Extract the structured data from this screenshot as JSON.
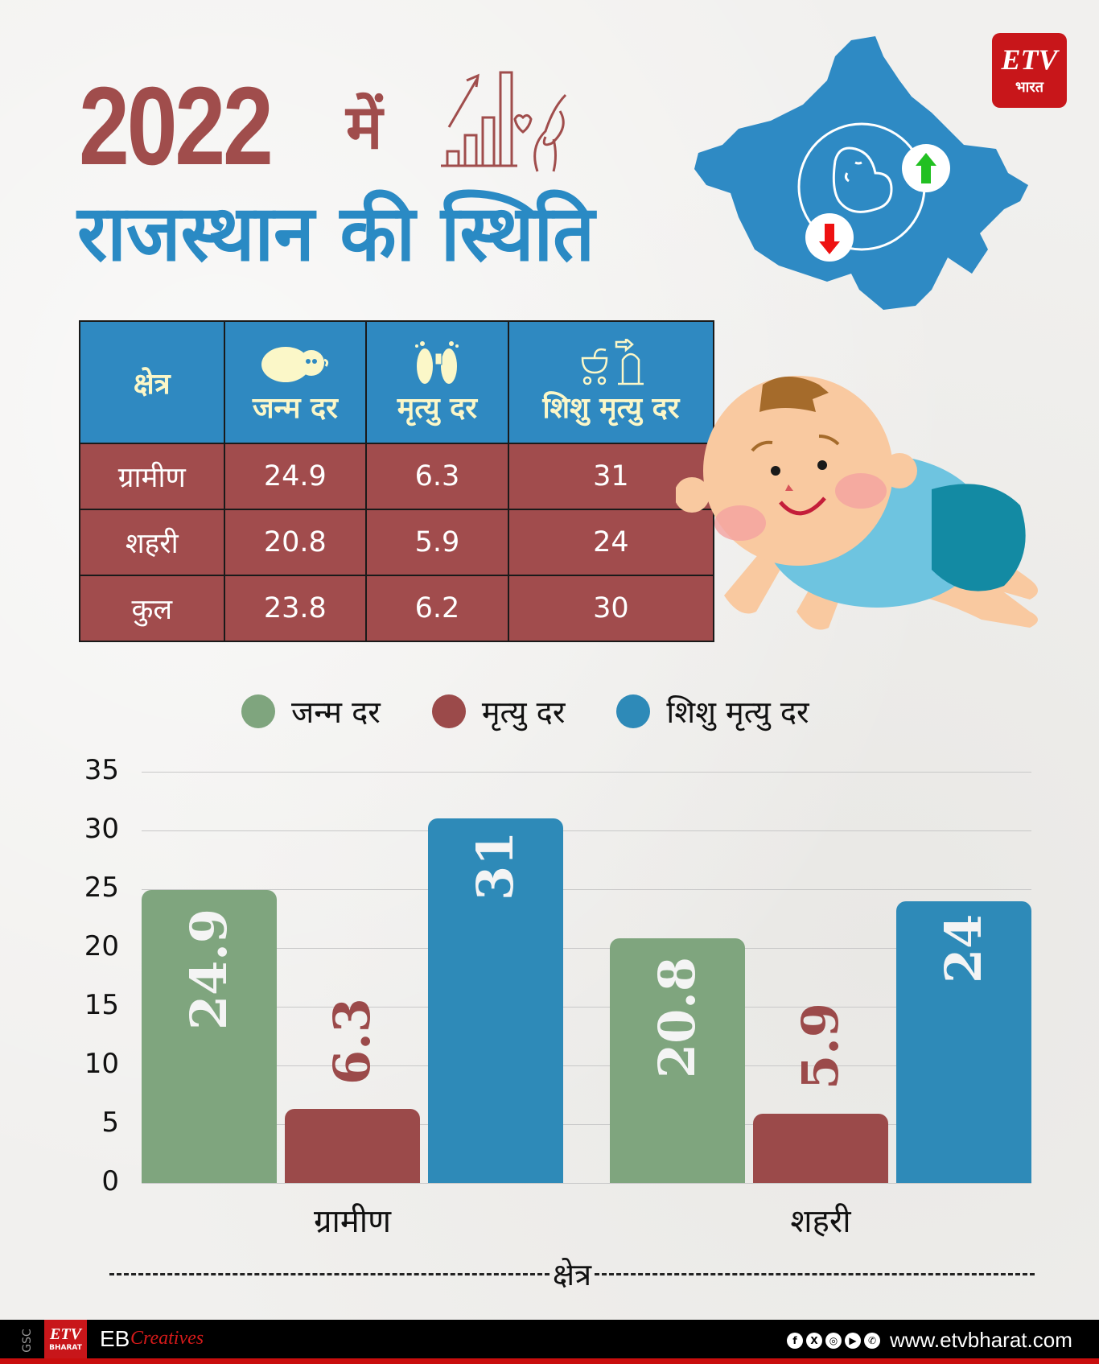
{
  "header": {
    "year": "2022",
    "year_suffix": "में",
    "subtitle": "राजस्थान की स्थिति"
  },
  "logo": {
    "brand": "ETV",
    "brand_sub": "भारत"
  },
  "table": {
    "headers": [
      "क्षेत्र",
      "जन्म दर",
      "मृत्यु दर",
      "शिशु मृत्यु दर"
    ],
    "rows": [
      [
        "ग्रामीण",
        "24.9",
        "6.3",
        "31"
      ],
      [
        "शहरी",
        "20.8",
        "5.9",
        "24"
      ],
      [
        "कुल",
        "23.8",
        "6.2",
        "30"
      ]
    ]
  },
  "legend": [
    {
      "label": "जन्म दर",
      "color": "#7fa57e"
    },
    {
      "label": "मृत्यु दर",
      "color": "#9b4a4a"
    },
    {
      "label": "शिशु मृत्यु दर",
      "color": "#2e8ab8"
    }
  ],
  "chart_data": {
    "type": "bar",
    "title": "2022 में राजस्थान की स्थिति",
    "categories": [
      "ग्रामीण",
      "शहरी"
    ],
    "series": [
      {
        "name": "जन्म दर",
        "values": [
          24.9,
          20.8
        ],
        "color": "#7fa57e"
      },
      {
        "name": "मृत्यु दर",
        "values": [
          6.3,
          5.9
        ],
        "color": "#9b4a4a"
      },
      {
        "name": "शिशु मृत्यु दर",
        "values": [
          31,
          24
        ],
        "color": "#2e8ab8"
      }
    ],
    "value_labels": [
      [
        "24.9",
        "20.8"
      ],
      [
        "6.3",
        "5.9"
      ],
      [
        "31",
        "24"
      ]
    ],
    "xlabel": "क्षेत्र",
    "ylabel": "",
    "ylim": [
      0,
      35
    ],
    "yticks": [
      "35",
      "30",
      "25",
      "20",
      "15",
      "10",
      "5",
      "0"
    ],
    "grid": true,
    "legend_position": "top"
  },
  "footer": {
    "gsc": "GSC",
    "etv": "ETV",
    "etv_sub": "BHARAT",
    "eb": "EB",
    "creatives": "Creatives",
    "social_icons": [
      "f",
      "X",
      "◎",
      "▶",
      "✆"
    ],
    "url": "www.etvbharat.com"
  }
}
